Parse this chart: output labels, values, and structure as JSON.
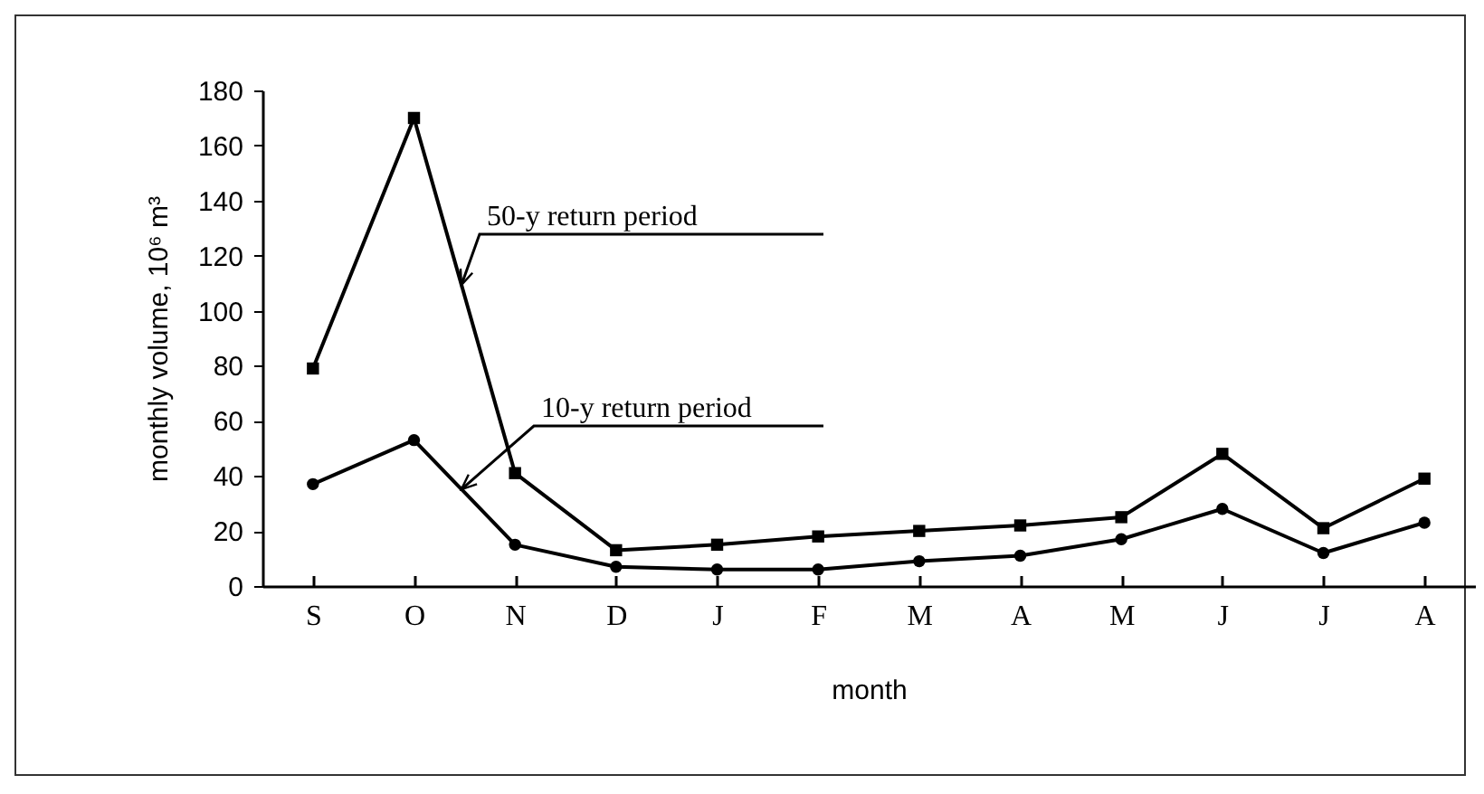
{
  "chart_data": {
    "type": "line",
    "xlabel": "month",
    "ylabel": "monthly volume, 10⁶ m³",
    "categories": [
      "S",
      "O",
      "N",
      "D",
      "J",
      "F",
      "M",
      "A",
      "M",
      "J",
      "J",
      "A"
    ],
    "series": [
      {
        "name": "50-y return period",
        "color": "#000000",
        "marker": "square",
        "values": [
          79,
          170,
          41,
          13,
          15,
          18,
          20,
          22,
          25,
          48,
          21,
          39
        ]
      },
      {
        "name": "10-y return period",
        "color": "#000000",
        "marker": "circle",
        "values": [
          37,
          53,
          15,
          7,
          6,
          6,
          9,
          11,
          17,
          28,
          12,
          23
        ]
      }
    ],
    "ylim": [
      0,
      180
    ],
    "yticks": [
      0,
      20,
      40,
      60,
      80,
      100,
      120,
      140,
      160,
      180
    ],
    "line_style": "solid"
  }
}
